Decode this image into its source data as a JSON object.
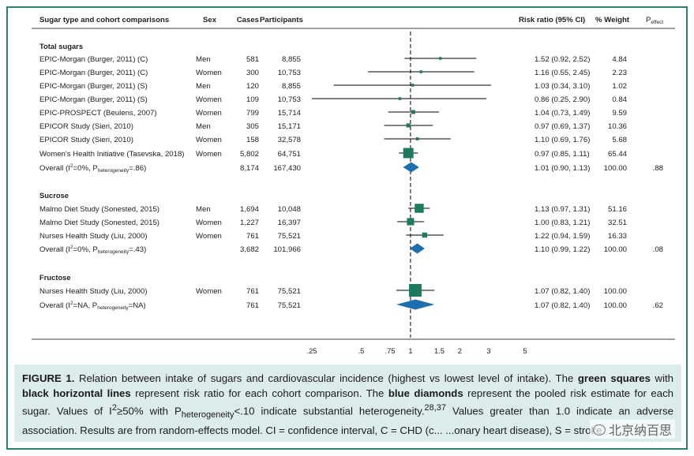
{
  "header": {
    "col_sugar": "Sugar type and cohort comparisons",
    "col_sex": "Sex",
    "col_cases": "Cases",
    "col_participants": "Participants",
    "col_rr": "Risk ratio (95% CI)",
    "col_weight": "% Weight",
    "col_peffect": "P",
    "col_peffect_sub": "effect"
  },
  "chart_data": {
    "type": "forest",
    "x_scale": "log",
    "reference_line": 1,
    "x_ticks": [
      ".25",
      ".5",
      ".75",
      "1",
      "1.5",
      "2",
      "3",
      "5"
    ],
    "x_tick_values": [
      0.25,
      0.5,
      0.75,
      1,
      1.5,
      2,
      3,
      5
    ],
    "groups": [
      {
        "label": "Total sugars",
        "studies": [
          {
            "name": "EPIC-Morgan (Burger, 2011) (C)",
            "sex": "Men",
            "cases": "581",
            "participants": "8,855",
            "rr": 1.52,
            "lo": 0.92,
            "hi": 2.52,
            "rr_text": "1.52 (0.92, 2.52)",
            "weight": "4.84",
            "w": 4.84
          },
          {
            "name": "EPIC-Morgan (Burger, 2011) (C)",
            "sex": "Women",
            "cases": "300",
            "participants": "10,753",
            "rr": 1.16,
            "lo": 0.55,
            "hi": 2.45,
            "rr_text": "1.16 (0.55, 2.45)",
            "weight": "2.23",
            "w": 2.23
          },
          {
            "name": "EPIC-Morgan (Burger, 2011) (S)",
            "sex": "Men",
            "cases": "120",
            "participants": "8,855",
            "rr": 1.03,
            "lo": 0.34,
            "hi": 3.1,
            "rr_text": "1.03 (0.34, 3.10)",
            "weight": "1.02",
            "w": 1.02
          },
          {
            "name": "EPIC-Morgan (Burger, 2011) (S)",
            "sex": "Women",
            "cases": "109",
            "participants": "10,753",
            "rr": 0.86,
            "lo": 0.25,
            "hi": 2.9,
            "rr_text": "0.86 (0.25, 2.90)",
            "weight": "0.84",
            "w": 0.84
          },
          {
            "name": "EPIC-PROSPECT (Beulens, 2007)",
            "sex": "Women",
            "cases": "799",
            "participants": "15,714",
            "rr": 1.04,
            "lo": 0.73,
            "hi": 1.49,
            "rr_text": "1.04 (0.73, 1.49)",
            "weight": "9.59",
            "w": 9.59
          },
          {
            "name": "EPICOR Study (Sieri, 2010)",
            "sex": "Men",
            "cases": "305",
            "participants": "15,171",
            "rr": 0.97,
            "lo": 0.69,
            "hi": 1.37,
            "rr_text": "0.97 (0.69, 1.37)",
            "weight": "10.36",
            "w": 10.36
          },
          {
            "name": "EPICOR Study (Sieri, 2010)",
            "sex": "Women",
            "cases": "158",
            "participants": "32,578",
            "rr": 1.1,
            "lo": 0.69,
            "hi": 1.76,
            "rr_text": "1.10 (0.69, 1.76)",
            "weight": "5.68",
            "w": 5.68
          },
          {
            "name": "Women's Health Initiative (Tasevska, 2018)",
            "sex": "Women",
            "cases": "5,802",
            "participants": "64,751",
            "rr": 0.97,
            "lo": 0.85,
            "hi": 1.11,
            "rr_text": "0.97 (0.85, 1.11)",
            "weight": "65.44",
            "w": 65.44
          }
        ],
        "overall": {
          "pre": "Overall (I",
          "mid": "=0%, P",
          "sub": "heterogeneity",
          "post": "=.86)",
          "cases": "8,174",
          "participants": "167,430",
          "rr": 1.01,
          "lo": 0.9,
          "hi": 1.13,
          "rr_text": "1.01 (0.90, 1.13)",
          "weight": "100.00",
          "p": ".88"
        }
      },
      {
        "label": "Sucrose",
        "studies": [
          {
            "name": "Malmo Diet Study (Sonested, 2015)",
            "sex": "Men",
            "cases": "1,694",
            "participants": "10,048",
            "rr": 1.13,
            "lo": 0.97,
            "hi": 1.31,
            "rr_text": "1.13 (0.97, 1.31)",
            "weight": "51.16",
            "w": 51.16
          },
          {
            "name": "Malmo Diet Study (Sonested, 2015)",
            "sex": "Women",
            "cases": "1,227",
            "participants": "16,397",
            "rr": 1.0,
            "lo": 0.83,
            "hi": 1.21,
            "rr_text": "1.00 (0.83, 1.21)",
            "weight": "32.51",
            "w": 32.51
          },
          {
            "name": "Nurses Health Study (Liu, 2000)",
            "sex": "Women",
            "cases": "761",
            "participants": "75,521",
            "rr": 1.22,
            "lo": 0.94,
            "hi": 1.59,
            "rr_text": "1.22 (0.94, 1.59)",
            "weight": "16.33",
            "w": 16.33
          }
        ],
        "overall": {
          "pre": "Overall (I",
          "mid": "=0%, P",
          "sub": "heterogeneity",
          "post": "=.43)",
          "cases": "3,682",
          "participants": "101,966",
          "rr": 1.1,
          "lo": 0.99,
          "hi": 1.22,
          "rr_text": "1.10 (0.99, 1.22)",
          "weight": "100.00",
          "p": ".08"
        }
      },
      {
        "label": "Fructose",
        "studies": [
          {
            "name": "Nurses Health Study (Liu, 2000)",
            "sex": "Women",
            "cases": "761",
            "participants": "75,521",
            "rr": 1.07,
            "lo": 0.82,
            "hi": 1.4,
            "rr_text": "1.07 (0.82, 1.40)",
            "weight": "100.00",
            "w": 100.0
          }
        ],
        "overall": {
          "pre": "Overall (I",
          "mid": "=NA, P",
          "sub": "heterogeneity",
          "post": "=NA)",
          "cases": "761",
          "participants": "75,521",
          "rr": 1.07,
          "lo": 0.82,
          "hi": 1.4,
          "rr_text": "1.07 (0.82, 1.40)",
          "weight": "100.00",
          "p": ".62"
        }
      }
    ],
    "colors": {
      "square": "#1e7a5e",
      "diamond": "#1f6fb0",
      "line": "#000000",
      "frame": "#2e7d74",
      "caption_bg": "#dcecea"
    }
  },
  "caption": {
    "label": "FIGURE 1.",
    "p1": " Relation between intake of sugars and cardiovascular incidence (highest vs lowest level of intake). The ",
    "b1": "green squares",
    "p2": " with ",
    "b2": "black horizontal lines",
    "p3": " represent risk ratio for each cohort comparison. The ",
    "b3": "blue diamonds",
    "p4": " represent the pooled risk estimate for each sugar. Values of I",
    "sup2": "2",
    "p5": "≥50% with P",
    "sub_het": "heterogeneity",
    "p6": "<.10 indicate substantial heterogeneity.",
    "refs": "28,37",
    "p7": " Values greater than 1.0 indicate an adverse association. Results are from random-effects model. CI = confidence interval, C = CHD (c... ...onary heart disease), S = stroke."
  },
  "watermark": "北京纳百思"
}
